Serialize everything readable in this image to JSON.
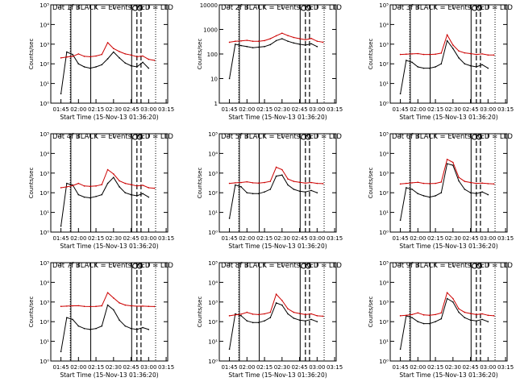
{
  "figure": {
    "x_axis_ticks": [
      "01:45",
      "02:00",
      "02:15",
      "02:30",
      "02:45",
      "03:00",
      "03:15"
    ],
    "x_axis_title": "Start Time (15-Nov-13 01:36:20)",
    "y_axis_title": "Counts/sec"
  },
  "colors": {
    "events": "#000000",
    "lld": "#cc0000",
    "axes": "#000000"
  },
  "chart_data": [
    {
      "type": "line",
      "title": "Det 1f BLACK = Events, RED = LLD",
      "xlabel": "Start Time (15-Nov-13 01:36:20)",
      "ylabel": "Counts/sec",
      "y_scale": "log",
      "ylim": [
        1,
        100000
      ],
      "y_ticks": [
        1,
        10,
        100,
        1000,
        10000,
        100000
      ],
      "y_tick_labels": [
        "10⁰",
        "10¹",
        "10²",
        "10³",
        "10⁴",
        "10⁵"
      ],
      "x": [
        "01:45",
        "01:50",
        "01:55",
        "02:00",
        "02:05",
        "02:10",
        "02:15",
        "02:20",
        "02:25",
        "02:30",
        "02:35",
        "02:40",
        "02:45",
        "02:50",
        "02:55",
        "03:00",
        "03:05"
      ],
      "series": [
        {
          "name": "Events",
          "values": [
            3,
            400,
            300,
            100,
            70,
            60,
            70,
            90,
            180,
            400,
            200,
            110,
            80,
            70,
            120,
            60,
            null
          ]
        },
        {
          "name": "LLD",
          "values": [
            200,
            220,
            240,
            320,
            240,
            230,
            250,
            300,
            1200,
            600,
            420,
            320,
            280,
            230,
            250,
            170,
            150
          ]
        }
      ]
    },
    {
      "type": "line",
      "title": "Det 2f BLACK = Events, RED = LLD",
      "xlabel": "Start Time (15-Nov-13 01:36:20)",
      "ylabel": "Counts/sec",
      "y_scale": "log",
      "ylim": [
        1,
        10000
      ],
      "y_ticks": [
        1,
        10,
        100,
        1000,
        10000
      ],
      "y_tick_labels": [
        "1",
        "10",
        "100",
        "1000",
        "10000"
      ],
      "x": [
        "01:45",
        "01:50",
        "01:55",
        "02:00",
        "02:05",
        "02:10",
        "02:15",
        "02:20",
        "02:25",
        "02:30",
        "02:35",
        "02:40",
        "02:45",
        "02:50",
        "02:55",
        "03:00",
        "03:05"
      ],
      "series": [
        {
          "name": "Events",
          "values": [
            10,
            250,
            220,
            200,
            180,
            190,
            200,
            240,
            350,
            420,
            330,
            280,
            250,
            230,
            260,
            200,
            null
          ]
        },
        {
          "name": "LLD",
          "values": [
            300,
            330,
            340,
            360,
            330,
            330,
            350,
            420,
            550,
            700,
            560,
            470,
            420,
            380,
            430,
            330,
            300
          ]
        }
      ]
    },
    {
      "type": "line",
      "title": "Det 3f BLACK = Events, RED = LLD",
      "xlabel": "Start Time (15-Nov-13 01:36:20)",
      "ylabel": "Counts/sec",
      "y_scale": "log",
      "ylim": [
        1,
        100000
      ],
      "y_ticks": [
        1,
        10,
        100,
        1000,
        10000,
        100000
      ],
      "y_tick_labels": [
        "10⁰",
        "10¹",
        "10²",
        "10³",
        "10⁴",
        "10⁵"
      ],
      "x": [
        "01:45",
        "01:50",
        "01:55",
        "02:00",
        "02:05",
        "02:10",
        "02:15",
        "02:20",
        "02:25",
        "02:30",
        "02:35",
        "02:40",
        "02:45",
        "02:50",
        "02:55",
        "03:00",
        "03:05"
      ],
      "series": [
        {
          "name": "Events",
          "values": [
            3,
            150,
            120,
            70,
            60,
            60,
            70,
            100,
            1500,
            600,
            200,
            100,
            80,
            70,
            90,
            60,
            null
          ]
        },
        {
          "name": "LLD",
          "values": [
            300,
            310,
            320,
            330,
            300,
            300,
            310,
            350,
            3000,
            900,
            450,
            360,
            330,
            300,
            320,
            280,
            280
          ]
        }
      ]
    },
    {
      "type": "line",
      "title": "Det 4f BLACK = Events, RED = LLD",
      "xlabel": "Start Time (15-Nov-13 01:36:20)",
      "ylabel": "Counts/sec",
      "y_scale": "log",
      "ylim": [
        1,
        100000
      ],
      "y_ticks": [
        1,
        10,
        100,
        1000,
        10000,
        100000
      ],
      "y_tick_labels": [
        "10⁰",
        "10¹",
        "10²",
        "10³",
        "10⁴",
        "10⁵"
      ],
      "x": [
        "01:45",
        "01:50",
        "01:55",
        "02:00",
        "02:05",
        "02:10",
        "02:15",
        "02:20",
        "02:25",
        "02:30",
        "02:35",
        "02:40",
        "02:45",
        "02:50",
        "02:55",
        "03:00",
        "03:05"
      ],
      "series": [
        {
          "name": "Events",
          "values": [
            2,
            300,
            250,
            80,
            60,
            55,
            65,
            80,
            300,
            600,
            200,
            100,
            80,
            70,
            90,
            60,
            null
          ]
        },
        {
          "name": "LLD",
          "values": [
            180,
            200,
            230,
            300,
            220,
            210,
            220,
            260,
            1500,
            900,
            400,
            300,
            260,
            220,
            240,
            180,
            170
          ]
        }
      ]
    },
    {
      "type": "line",
      "title": "Det 5f BLACK = Events, RED = LLD",
      "xlabel": "Start Time (15-Nov-13 01:36:20)",
      "ylabel": "Counts/sec",
      "y_scale": "log",
      "ylim": [
        1,
        100000
      ],
      "y_ticks": [
        1,
        10,
        100,
        1000,
        10000,
        100000
      ],
      "y_tick_labels": [
        "10⁰",
        "10¹",
        "10²",
        "10³",
        "10⁴",
        "10⁵"
      ],
      "x": [
        "01:45",
        "01:50",
        "01:55",
        "02:00",
        "02:05",
        "02:10",
        "02:15",
        "02:20",
        "02:25",
        "02:30",
        "02:35",
        "02:40",
        "02:45",
        "02:50",
        "02:55",
        "03:00",
        "03:05"
      ],
      "series": [
        {
          "name": "Events",
          "values": [
            5,
            250,
            200,
            100,
            90,
            90,
            110,
            150,
            700,
            800,
            250,
            150,
            120,
            110,
            130,
            100,
            null
          ]
        },
        {
          "name": "LLD",
          "values": [
            300,
            320,
            330,
            360,
            320,
            310,
            330,
            380,
            2000,
            1500,
            500,
            380,
            340,
            310,
            330,
            300,
            290
          ]
        }
      ]
    },
    {
      "type": "line",
      "title": "Det 6f BLACK = Events, RED = LLD",
      "xlabel": "Start Time (15-Nov-13 01:36:20)",
      "ylabel": "Counts/sec",
      "y_scale": "log",
      "ylim": [
        1,
        100000
      ],
      "y_ticks": [
        1,
        10,
        100,
        1000,
        10000,
        100000
      ],
      "y_tick_labels": [
        "10⁰",
        "10¹",
        "10²",
        "10³",
        "10⁴",
        "10⁵"
      ],
      "x": [
        "01:45",
        "01:50",
        "01:55",
        "02:00",
        "02:05",
        "02:10",
        "02:15",
        "02:20",
        "02:25",
        "02:30",
        "02:35",
        "02:40",
        "02:45",
        "02:50",
        "02:55",
        "03:00",
        "03:05"
      ],
      "series": [
        {
          "name": "Events",
          "values": [
            4,
            180,
            150,
            90,
            70,
            60,
            70,
            100,
            3000,
            2500,
            400,
            150,
            100,
            90,
            110,
            80,
            null
          ]
        },
        {
          "name": "LLD",
          "values": [
            280,
            300,
            320,
            340,
            300,
            290,
            300,
            350,
            5000,
            3500,
            600,
            380,
            330,
            300,
            310,
            290,
            280
          ]
        }
      ]
    },
    {
      "type": "line",
      "title": "Det 7f BLACK = Events, RED = LLD",
      "xlabel": "Start Time (15-Nov-13 01:36:20)",
      "ylabel": "Counts/sec",
      "y_scale": "log",
      "ylim": [
        1,
        100000
      ],
      "y_ticks": [
        1,
        10,
        100,
        1000,
        10000,
        100000
      ],
      "y_tick_labels": [
        "10⁰",
        "10¹",
        "10²",
        "10³",
        "10⁴",
        "10⁵"
      ],
      "x": [
        "01:45",
        "01:50",
        "01:55",
        "02:00",
        "02:05",
        "02:10",
        "02:15",
        "02:20",
        "02:25",
        "02:30",
        "02:35",
        "02:40",
        "02:45",
        "02:50",
        "02:55",
        "03:00",
        "03:05"
      ],
      "series": [
        {
          "name": "Events",
          "values": [
            3,
            160,
            130,
            60,
            45,
            40,
            45,
            60,
            700,
            400,
            120,
            60,
            45,
            40,
            50,
            40,
            null
          ]
        },
        {
          "name": "LLD",
          "values": [
            600,
            620,
            640,
            650,
            600,
            590,
            600,
            640,
            3000,
            1600,
            900,
            700,
            640,
            610,
            620,
            600,
            590
          ]
        }
      ]
    },
    {
      "type": "line",
      "title": "Det 8f BLACK = Events, RED = LLD",
      "xlabel": "Start Time (15-Nov-13 01:36:20)",
      "ylabel": "Counts/sec",
      "y_scale": "log",
      "ylim": [
        1,
        100000
      ],
      "y_ticks": [
        1,
        10,
        100,
        1000,
        10000,
        100000
      ],
      "y_tick_labels": [
        "10⁰",
        "10¹",
        "10²",
        "10³",
        "10⁴",
        "10⁵"
      ],
      "x": [
        "01:45",
        "01:50",
        "01:55",
        "02:00",
        "02:05",
        "02:10",
        "02:15",
        "02:20",
        "02:25",
        "02:30",
        "02:35",
        "02:40",
        "02:45",
        "02:50",
        "02:55",
        "03:00",
        "03:05"
      ],
      "series": [
        {
          "name": "Events",
          "values": [
            4,
            250,
            200,
            110,
            90,
            90,
            110,
            160,
            900,
            700,
            250,
            150,
            120,
            110,
            130,
            100,
            null
          ]
        },
        {
          "name": "LLD",
          "values": [
            200,
            220,
            240,
            300,
            240,
            230,
            250,
            300,
            2500,
            1200,
            450,
            300,
            260,
            230,
            250,
            200,
            190
          ]
        }
      ]
    },
    {
      "type": "line",
      "title": "Det 9f BLACK = Events, RED = LLD",
      "xlabel": "Start Time (15-Nov-13 01:36:20)",
      "ylabel": "Counts/sec",
      "y_scale": "log",
      "ylim": [
        1,
        100000
      ],
      "y_ticks": [
        1,
        10,
        100,
        1000,
        10000,
        100000
      ],
      "y_tick_labels": [
        "10⁰",
        "10¹",
        "10²",
        "10³",
        "10⁴",
        "10⁵"
      ],
      "x": [
        "01:45",
        "01:50",
        "01:55",
        "02:00",
        "02:05",
        "02:10",
        "02:15",
        "02:20",
        "02:25",
        "02:30",
        "02:35",
        "02:40",
        "02:45",
        "02:50",
        "02:55",
        "03:00",
        "03:05"
      ],
      "series": [
        {
          "name": "Events",
          "values": [
            4,
            200,
            160,
            100,
            80,
            80,
            100,
            140,
            1500,
            1000,
            300,
            160,
            120,
            110,
            130,
            100,
            null
          ]
        },
        {
          "name": "LLD",
          "values": [
            200,
            210,
            230,
            280,
            220,
            210,
            230,
            280,
            3000,
            1500,
            450,
            300,
            260,
            230,
            250,
            210,
            200
          ]
        }
      ]
    }
  ]
}
